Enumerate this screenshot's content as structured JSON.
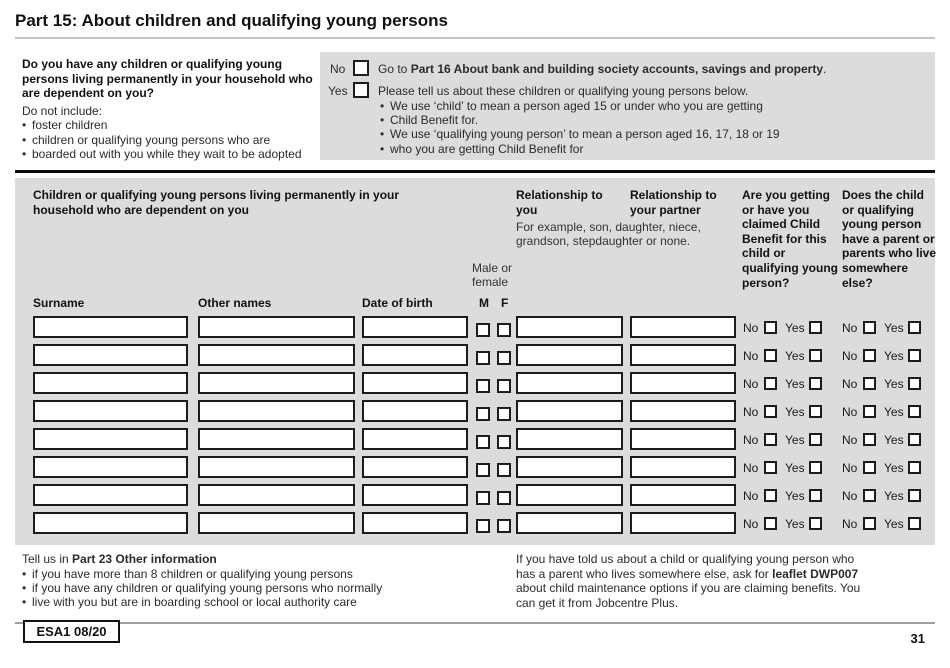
{
  "page": {
    "title": "Part 15: About children and qualifying young persons",
    "form_code": "ESA1 08/20",
    "page_number": "31"
  },
  "question": {
    "prompt": "Do you have any children or qualifying young persons living permanently in your household who are dependent on you?",
    "note": "Do not include:",
    "exclusions": [
      "foster children",
      "children or qualifying young persons who are",
      "boarded out with you while they wait to be adopted"
    ],
    "no": {
      "label": "No",
      "pre": "Go to ",
      "bold": "Part 16 About bank and building society accounts, savings and property",
      "post": "."
    },
    "yes": {
      "label": "Yes",
      "text": "Please tell us about these children or qualifying young persons below.",
      "bullets": [
        "We use ‘child’ to mean a person aged 15 or under who you are getting",
        "Child Benefit for.",
        "We use ‘qualifying young person’ to mean a person aged 16, 17, 18 or 19",
        "who you are getting Child Benefit for"
      ]
    }
  },
  "table": {
    "heading": "Children or qualifying young persons living permanently in your household who are dependent on you",
    "columns": {
      "surname": "Surname",
      "other_names": "Other names",
      "date_of_birth": "Date of birth",
      "male_female": "Male or female",
      "m": "M",
      "f": "F",
      "relationship_you": "Relationship to you",
      "relationship_partner": "Relationship to your partner",
      "relationship_example": "For example, son, daughter, niece, grandson, stepdaughter or none.",
      "child_benefit": "Are you getting or have you claimed Child Benefit for this child or qualifying young person?",
      "parent_elsewhere": "Does the child or qualifying young person have a parent or parents who live somewhere else?"
    },
    "row_count": 8,
    "no_label": "No",
    "yes_label": "Yes"
  },
  "footer": {
    "left": {
      "pre": "Tell us in ",
      "bold": "Part 23 Other information",
      "bullets": [
        "if you have more than 8 children or qualifying young persons",
        "if you have any children or qualifying young persons who normally",
        "live with you but are in boarding school or local authority care"
      ]
    },
    "right": {
      "pre": "If you have told us about a child or qualifying young person who has a parent who lives somewhere else, ask for ",
      "bold": "leaflet DWP007",
      "post": " about child maintenance options if you are claiming benefits. You can get it from Jobcentre Plus."
    }
  }
}
